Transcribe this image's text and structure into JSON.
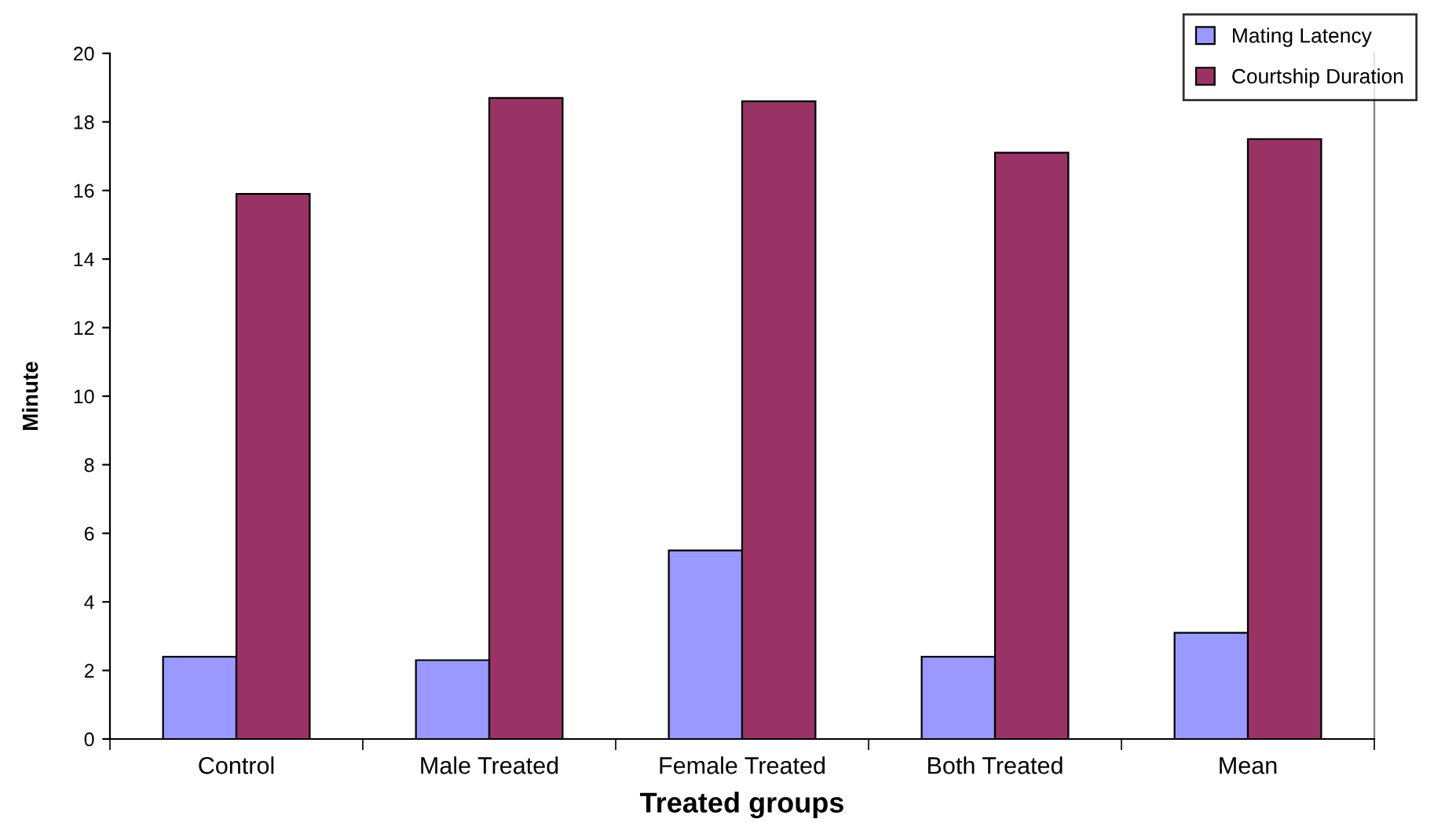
{
  "chart_data": {
    "type": "bar",
    "xlabel": "Treated groups",
    "ylabel": "Minute",
    "categories": [
      "Control",
      "Male Treated",
      "Female Treated",
      "Both Treated",
      "Mean"
    ],
    "series": [
      {
        "name": "Mating Latency",
        "color": "#9999ff",
        "values": [
          2.4,
          2.3,
          5.5,
          2.4,
          3.1
        ]
      },
      {
        "name": "Courtship Duration",
        "color": "#993366",
        "values": [
          15.9,
          18.7,
          18.6,
          17.1,
          17.5
        ]
      }
    ],
    "ylim": [
      0,
      20
    ],
    "yticks": [
      0,
      2,
      4,
      6,
      8,
      10,
      12,
      14,
      16,
      18,
      20
    ],
    "grid": false,
    "legend": "top right"
  }
}
